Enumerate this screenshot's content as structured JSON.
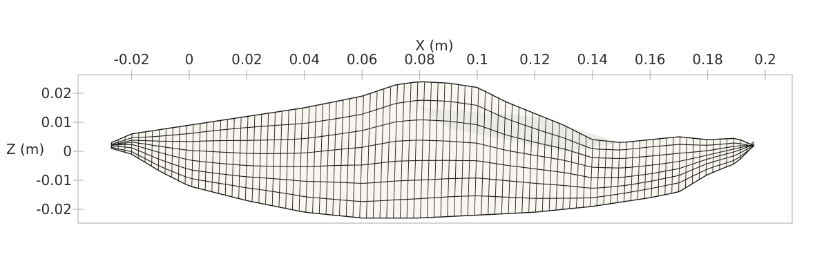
{
  "chart_data": {
    "type": "mesh-plot",
    "x_axis": {
      "title": "X (m)",
      "position": "top",
      "ticks": [
        -0.02,
        0,
        0.02,
        0.04,
        0.06,
        0.08,
        0.1,
        0.12,
        0.14,
        0.16,
        0.18,
        0.2
      ],
      "tick_labels": [
        "-0.02",
        "0",
        "0.02",
        "0.04",
        "0.06",
        "0.08",
        "0.1",
        "0.12",
        "0.14",
        "0.16",
        "0.18",
        "0.2"
      ]
    },
    "z_axis": {
      "title": "Z (m)",
      "position": "left",
      "ticks": [
        0.02,
        0.01,
        0,
        -0.01,
        -0.02
      ],
      "tick_labels": [
        "0.02",
        "0.01",
        "0",
        "-0.01",
        "-0.02"
      ]
    },
    "top_profile": [
      [
        -0.027,
        0.003
      ],
      [
        -0.02,
        0.006
      ],
      [
        0.0,
        0.009
      ],
      [
        0.02,
        0.012
      ],
      [
        0.04,
        0.015
      ],
      [
        0.06,
        0.019
      ],
      [
        0.072,
        0.023
      ],
      [
        0.08,
        0.024
      ],
      [
        0.09,
        0.0235
      ],
      [
        0.1,
        0.022
      ],
      [
        0.11,
        0.017
      ],
      [
        0.12,
        0.013
      ],
      [
        0.13,
        0.009
      ],
      [
        0.14,
        0.004
      ],
      [
        0.15,
        0.003
      ],
      [
        0.16,
        0.004
      ],
      [
        0.17,
        0.005
      ],
      [
        0.18,
        0.004
      ],
      [
        0.19,
        0.0045
      ],
      [
        0.196,
        0.002
      ]
    ],
    "bottom_profile": [
      [
        -0.027,
        0.001
      ],
      [
        -0.02,
        -0.001
      ],
      [
        -0.01,
        -0.007
      ],
      [
        0.0,
        -0.012
      ],
      [
        0.02,
        -0.017
      ],
      [
        0.04,
        -0.021
      ],
      [
        0.06,
        -0.023
      ],
      [
        0.08,
        -0.023
      ],
      [
        0.1,
        -0.022
      ],
      [
        0.12,
        -0.021
      ],
      [
        0.14,
        -0.019
      ],
      [
        0.16,
        -0.016
      ],
      [
        0.17,
        -0.014
      ],
      [
        0.18,
        -0.008
      ],
      [
        0.19,
        -0.004
      ],
      [
        0.196,
        0.002
      ]
    ],
    "mesh": {
      "longitudinal_lines": 7,
      "cross_sections": 95
    },
    "colors": {
      "surface": "#f8f6ee",
      "surface_shade": "#e9e8e2",
      "underside": "#8f8f96",
      "edge": "#1e1e1e",
      "axes": "#b8b8b8",
      "text": "#2b2b2b"
    }
  }
}
